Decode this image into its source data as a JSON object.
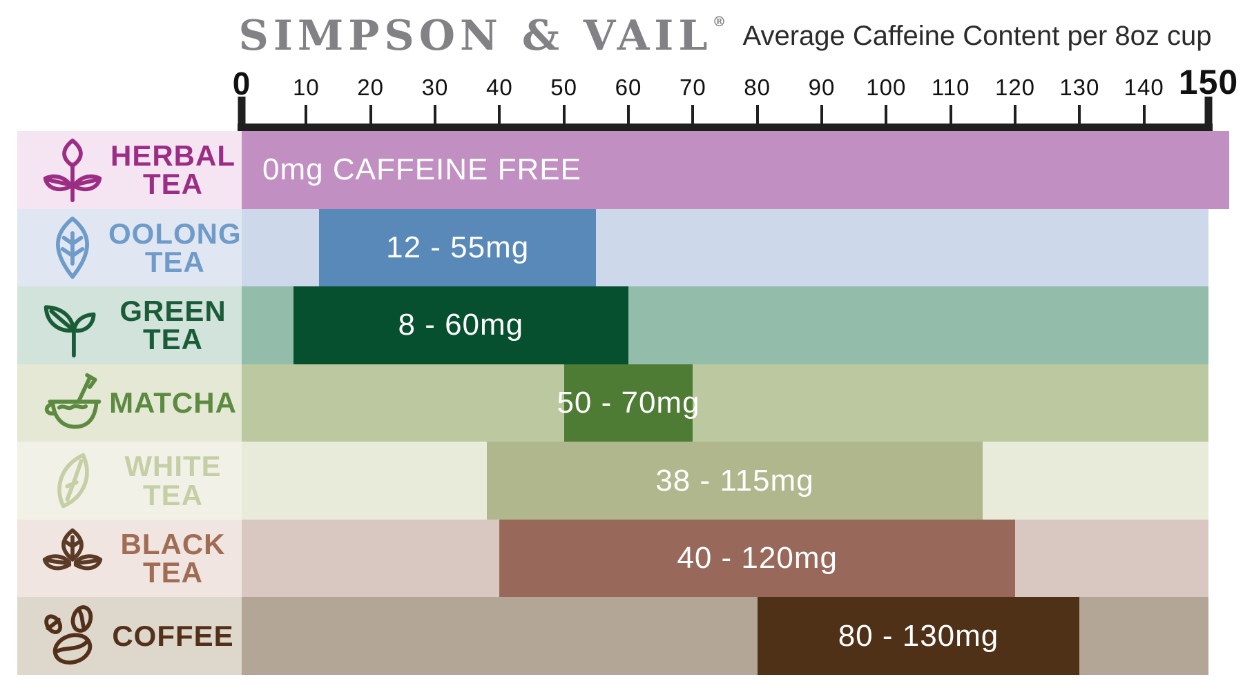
{
  "title": {
    "brand": "SIMPSON & VAIL",
    "registered": "®",
    "subtitle": "Average Caffeine Content per 8oz cup"
  },
  "axis": {
    "min": 0,
    "max": 150,
    "ticks": [
      0,
      10,
      20,
      30,
      40,
      50,
      60,
      70,
      80,
      90,
      100,
      110,
      120,
      130,
      140,
      150
    ]
  },
  "colors": {
    "background": "#ffffff",
    "axis": "#1f1f1f",
    "tick_text": "#111111",
    "title_brand": "#828286",
    "title_subtitle": "#2b2b2b",
    "bar_value_text": "#ffffff"
  },
  "chart_data": {
    "type": "bar",
    "orientation": "horizontal-range",
    "brand": "SIMPSON & VAIL",
    "title": "Average Caffeine Content per 8oz cup",
    "unit": "mg",
    "xlim": [
      0,
      150
    ],
    "x_ticks": [
      0,
      10,
      20,
      30,
      40,
      50,
      60,
      70,
      80,
      90,
      100,
      110,
      120,
      130,
      140,
      150
    ],
    "grid": false,
    "legend": false,
    "categories": [
      "HERBAL TEA",
      "OOLONG TEA",
      "GREEN TEA",
      "MATCHA",
      "WHITE TEA",
      "BLACK TEA",
      "COFFEE"
    ],
    "rows": [
      {
        "id": "herbal-tea",
        "label_lines": [
          "HERBAL",
          "TEA"
        ],
        "icon": "herbal-tea-icon",
        "range_mg": [
          0,
          0
        ],
        "bar_span": [
          0,
          150
        ],
        "value_label": "0mg CAFFEINE FREE",
        "label_align": "left",
        "colors": {
          "label_bg": "#f5e4f1",
          "text": "#9c2d84",
          "icon": "#9c2d84",
          "strip": "#c18fc1",
          "bar": "#c18fc1",
          "edge": "#8b2076"
        }
      },
      {
        "id": "oolong-tea",
        "label_lines": [
          "OOLONG",
          "TEA"
        ],
        "icon": "oolong-tea-icon",
        "range_mg": [
          12,
          55
        ],
        "bar_span": [
          12,
          55
        ],
        "value_label": "12 - 55mg",
        "label_align": "center",
        "colors": {
          "label_bg": "#e0e7f3",
          "text": "#6f9bc9",
          "icon": "#6f9bc9",
          "strip": "#cdd8ea",
          "bar": "#5989b8"
        }
      },
      {
        "id": "green-tea",
        "label_lines": [
          "GREEN",
          "TEA"
        ],
        "icon": "green-tea-icon",
        "range_mg": [
          8,
          60
        ],
        "bar_span": [
          8,
          60
        ],
        "value_label": "8 - 60mg",
        "label_align": "center",
        "colors": {
          "label_bg": "#d1e3da",
          "text": "#1a5c38",
          "icon": "#1a5c38",
          "strip": "#93bcab",
          "bar": "#07502f"
        }
      },
      {
        "id": "matcha",
        "label_lines": [
          "MATCHA"
        ],
        "icon": "matcha-icon",
        "range_mg": [
          50,
          70
        ],
        "bar_span": [
          50,
          70
        ],
        "value_label": "50 - 70mg",
        "label_align": "center",
        "colors": {
          "label_bg": "#e4e8d4",
          "text": "#5c8a41",
          "icon": "#5c8a41",
          "strip": "#bcc9a0",
          "bar": "#4e7c35"
        }
      },
      {
        "id": "white-tea",
        "label_lines": [
          "WHITE",
          "TEA"
        ],
        "icon": "white-tea-icon",
        "range_mg": [
          38,
          115
        ],
        "bar_span": [
          38,
          115
        ],
        "value_label": "38 - 115mg",
        "label_align": "center",
        "colors": {
          "label_bg": "#f2f1e8",
          "text": "#c5cfa5",
          "icon": "#c5cfa5",
          "strip": "#e9ebda",
          "bar": "#b0b78d"
        }
      },
      {
        "id": "black-tea",
        "label_lines": [
          "BLACK",
          "TEA"
        ],
        "icon": "black-tea-icon",
        "range_mg": [
          40,
          120
        ],
        "bar_span": [
          40,
          120
        ],
        "value_label": "40 - 120mg",
        "label_align": "center",
        "colors": {
          "label_bg": "#f0e5e0",
          "text": "#a06c54",
          "icon": "#5b3a26",
          "strip": "#d9c8c1",
          "bar": "#98695a"
        }
      },
      {
        "id": "coffee",
        "label_lines": [
          "COFFEE"
        ],
        "icon": "coffee-icon",
        "range_mg": [
          80,
          130
        ],
        "bar_span": [
          80,
          130
        ],
        "value_label": "80 - 130mg",
        "label_align": "center",
        "colors": {
          "label_bg": "#ded7cb",
          "text": "#53301a",
          "icon": "#53301a",
          "strip": "#b3a697",
          "bar": "#4f3118"
        }
      }
    ]
  }
}
